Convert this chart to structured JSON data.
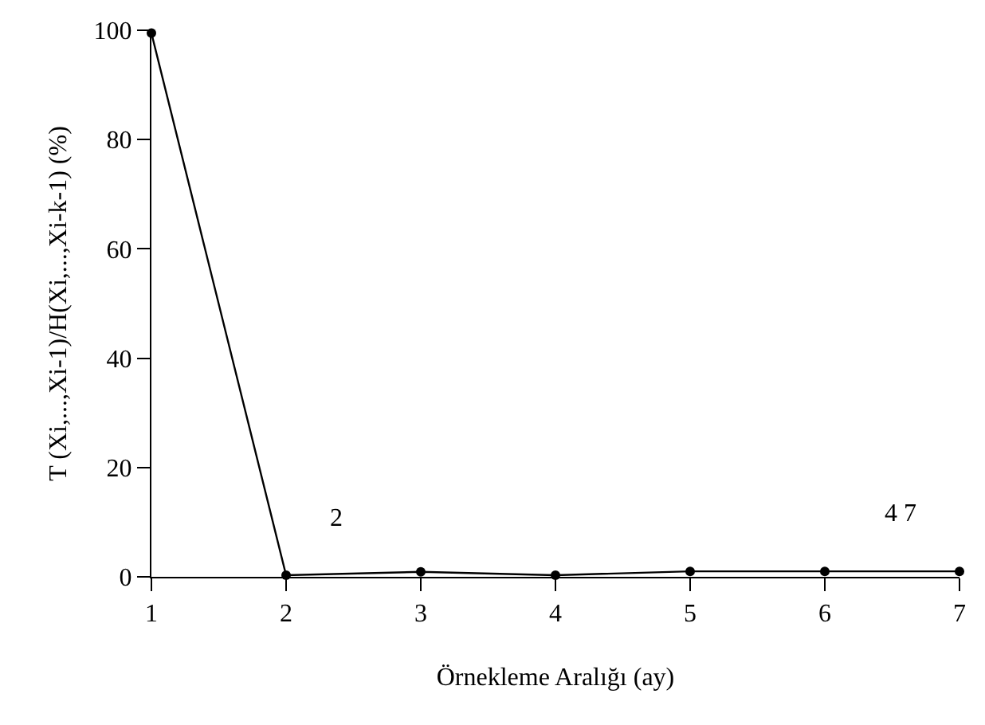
{
  "chart_data": {
    "type": "line",
    "xlabel": "Örnekleme Aralığı (ay)",
    "ylabel": "T (Xi,...,Xi-1)/H(Xi,...,Xi-k-1) (%)",
    "x": [
      1,
      2,
      3,
      4,
      5,
      6,
      7
    ],
    "series": [
      {
        "color": "#000000",
        "values": [
          99.5,
          0.3,
          0.9,
          0.3,
          1.0,
          1.0,
          1.0
        ]
      }
    ],
    "xlim": [
      1,
      7
    ],
    "xticks": [
      1,
      2,
      3,
      4,
      5,
      6,
      7
    ],
    "ylim": [
      0,
      100
    ],
    "yticks": [
      0,
      20,
      40,
      60,
      80,
      100
    ],
    "legend": false,
    "marker": "circle",
    "line_style": "solid",
    "annotations": [
      "2",
      "4 7"
    ]
  }
}
